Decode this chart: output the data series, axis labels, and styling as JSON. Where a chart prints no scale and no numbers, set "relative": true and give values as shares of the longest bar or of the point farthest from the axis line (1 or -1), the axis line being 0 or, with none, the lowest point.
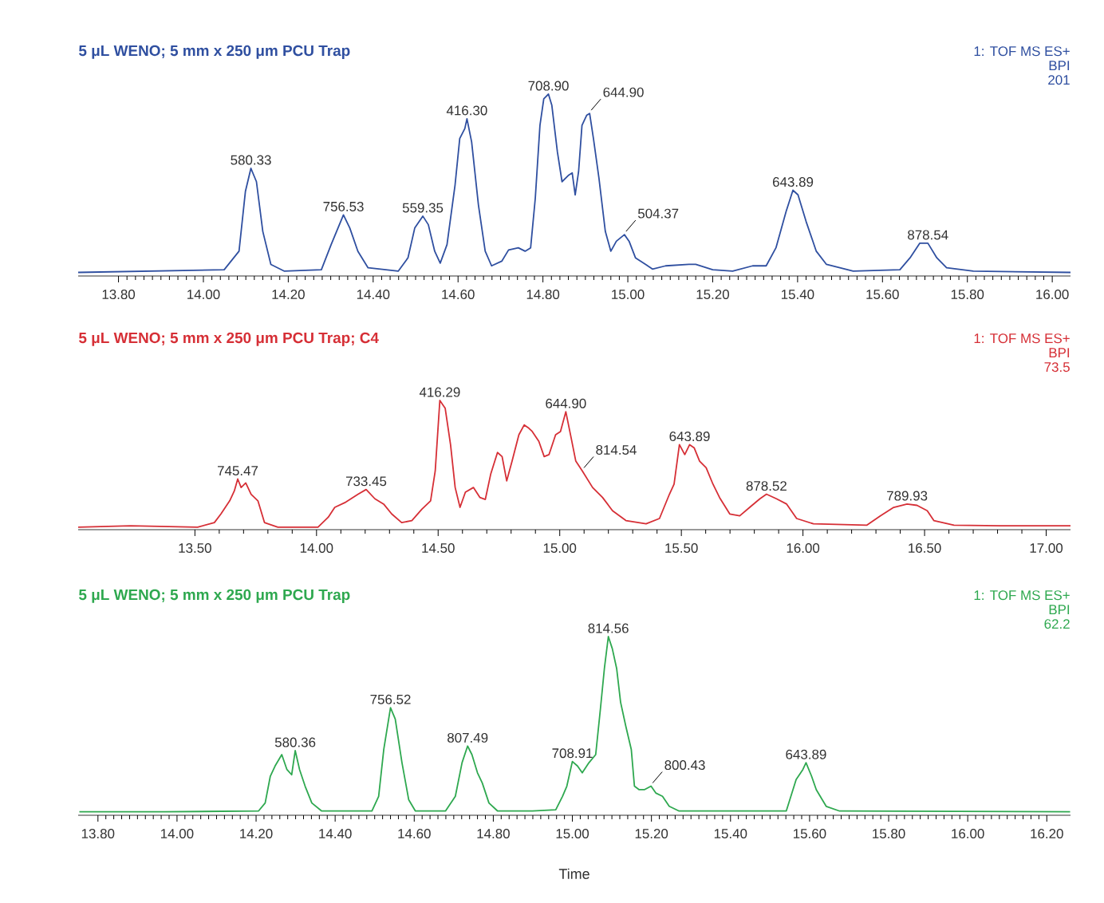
{
  "chart_data": [
    {
      "type": "line",
      "title": "5 μL WENO; 5 mm x 250 μm PCU Trap",
      "relative": true,
      "annotations": [
        "1: TOF MS ES+",
        "BPI",
        "201",
        {
          "text": "580.33",
          "x": 14.112,
          "y": 0.584
        },
        {
          "text": "756.53",
          "x": 14.33,
          "y": 0.323
        },
        {
          "text": "559.35",
          "x": 14.517,
          "y": 0.316
        },
        {
          "text": "416.30",
          "x": 14.621,
          "y": 0.862
        },
        {
          "text": "708.90",
          "x": 14.813,
          "y": 1
        },
        {
          "text": "644.90",
          "x": 14.91,
          "y": 0.892
        },
        {
          "text": "504.37",
          "x": 14.992,
          "y": 0.212
        },
        {
          "text": "643.89",
          "x": 15.389,
          "y": 0.461
        },
        {
          "text": "878.54",
          "x": 15.707,
          "y": 0.164
        }
      ],
      "xlim": [
        13.705,
        16.043
      ],
      "xticks": [
        {
          "value": 13.8,
          "label": "13.80"
        },
        {
          "value": 14.0,
          "label": "14.00"
        },
        {
          "value": 14.2,
          "label": "14.20"
        },
        {
          "value": 14.4,
          "label": "14.40"
        },
        {
          "value": 14.6,
          "label": "14.60"
        },
        {
          "value": 14.8,
          "label": "14.80"
        },
        {
          "value": 15.0,
          "label": "15.00"
        },
        {
          "value": 15.2,
          "label": "15.20"
        },
        {
          "value": 15.4,
          "label": "15.40"
        },
        {
          "value": 15.6,
          "label": "15.60"
        },
        {
          "value": 15.8,
          "label": "15.80"
        },
        {
          "value": 16.0,
          "label": "16.00"
        }
      ],
      "series": [
        {
          "color": "#2f4fa0",
          "x": [
            13.705,
            14.049,
            14.084,
            14.099,
            14.112,
            14.125,
            14.14,
            14.159,
            14.191,
            14.278,
            14.301,
            14.33,
            14.345,
            14.364,
            14.388,
            14.459,
            14.482,
            14.498,
            14.517,
            14.53,
            14.545,
            14.558,
            14.574,
            14.593,
            14.604,
            14.616,
            14.621,
            14.632,
            14.648,
            14.664,
            14.679,
            14.703,
            14.719,
            14.742,
            14.758,
            14.771,
            14.782,
            14.793,
            14.802,
            14.813,
            14.821,
            14.834,
            14.845,
            14.861,
            14.869,
            14.876,
            14.884,
            14.892,
            14.903,
            14.91,
            14.919,
            14.932,
            14.947,
            14.96,
            14.973,
            14.992,
            15.003,
            15.018,
            15.042,
            15.058,
            15.089,
            15.144,
            15.16,
            15.2,
            15.247,
            15.294,
            15.326,
            15.349,
            15.373,
            15.389,
            15.401,
            15.42,
            15.444,
            15.468,
            15.531,
            15.641,
            15.665,
            15.688,
            15.707,
            15.728,
            15.751,
            15.814,
            16.043
          ],
          "values": [
            0,
            0.015,
            0.119,
            0.454,
            0.584,
            0.509,
            0.23,
            0.045,
            0.007,
            0.015,
            0.156,
            0.323,
            0.249,
            0.119,
            0.026,
            0.007,
            0.082,
            0.249,
            0.316,
            0.268,
            0.119,
            0.052,
            0.156,
            0.491,
            0.751,
            0.807,
            0.862,
            0.732,
            0.379,
            0.119,
            0.037,
            0.063,
            0.126,
            0.138,
            0.119,
            0.138,
            0.416,
            0.825,
            0.974,
            1,
            0.937,
            0.677,
            0.509,
            0.546,
            0.558,
            0.435,
            0.565,
            0.825,
            0.881,
            0.892,
            0.751,
            0.528,
            0.23,
            0.119,
            0.175,
            0.212,
            0.175,
            0.082,
            0.045,
            0.019,
            0.037,
            0.045,
            0.045,
            0.015,
            0.007,
            0.037,
            0.037,
            0.138,
            0.342,
            0.461,
            0.435,
            0.286,
            0.119,
            0.045,
            0.007,
            0.015,
            0.082,
            0.164,
            0.164,
            0.082,
            0.026,
            0.007,
            0
          ]
        }
      ]
    },
    {
      "type": "line",
      "title": "5 μL WENO; 5 mm x 250 μm PCU Trap; C4",
      "relative": true,
      "annotations": [
        "1: TOF MS ES+",
        "BPI",
        "73.5",
        {
          "text": "745.47",
          "x": 13.676,
          "y": 0.38
        },
        {
          "text": "733.45",
          "x": 14.204,
          "y": 0.297
        },
        {
          "text": "416.29",
          "x": 14.507,
          "y": 1
        },
        {
          "text": "644.90",
          "x": 15.025,
          "y": 0.911
        },
        {
          "text": "814.54",
          "x": 15.093,
          "y": 0.443
        },
        {
          "text": "643.89",
          "x": 15.534,
          "y": 0.651
        },
        {
          "text": "878.52",
          "x": 15.85,
          "y": 0.26
        },
        {
          "text": "789.93",
          "x": 16.428,
          "y": 0.182
        }
      ],
      "xlim": [
        13.02,
        17.1
      ],
      "xticks": [
        {
          "value": 13.5,
          "label": "13.50"
        },
        {
          "value": 14.0,
          "label": "14.00"
        },
        {
          "value": 14.5,
          "label": "14.50"
        },
        {
          "value": 15.0,
          "label": "15.00"
        },
        {
          "value": 15.5,
          "label": "15.50"
        },
        {
          "value": 16.0,
          "label": "16.00"
        },
        {
          "value": 16.5,
          "label": "16.50"
        },
        {
          "value": 17.0,
          "label": "17.00"
        }
      ],
      "series": [
        {
          "color": "#d62f36",
          "x": [
            13.02,
            13.236,
            13.511,
            13.58,
            13.607,
            13.643,
            13.662,
            13.676,
            13.69,
            13.709,
            13.731,
            13.759,
            13.786,
            13.841,
            14.006,
            14.048,
            14.075,
            14.116,
            14.171,
            14.204,
            14.24,
            14.276,
            14.309,
            14.35,
            14.392,
            14.433,
            14.469,
            14.488,
            14.507,
            14.529,
            14.551,
            14.57,
            14.59,
            14.612,
            14.645,
            14.672,
            14.694,
            14.716,
            14.744,
            14.763,
            14.782,
            14.804,
            14.832,
            14.854,
            14.873,
            14.887,
            14.914,
            14.936,
            14.956,
            14.983,
            15.003,
            15.025,
            15.047,
            15.066,
            15.093,
            15.135,
            15.176,
            15.217,
            15.272,
            15.355,
            15.41,
            15.451,
            15.47,
            15.492,
            15.514,
            15.534,
            15.553,
            15.575,
            15.602,
            15.63,
            15.657,
            15.699,
            15.74,
            15.781,
            15.823,
            15.85,
            15.891,
            15.933,
            15.974,
            16.043,
            16.263,
            16.318,
            16.373,
            16.428,
            16.469,
            16.511,
            16.538,
            16.621,
            16.813,
            17.1
          ],
          "values": [
            0,
            0.01,
            0,
            0.036,
            0.104,
            0.208,
            0.286,
            0.38,
            0.313,
            0.349,
            0.26,
            0.208,
            0.036,
            0,
            0,
            0.078,
            0.156,
            0.193,
            0.26,
            0.297,
            0.224,
            0.182,
            0.104,
            0.036,
            0.052,
            0.141,
            0.208,
            0.443,
            1,
            0.938,
            0.651,
            0.313,
            0.156,
            0.276,
            0.313,
            0.234,
            0.219,
            0.417,
            0.589,
            0.557,
            0.365,
            0.521,
            0.729,
            0.807,
            0.781,
            0.755,
            0.677,
            0.557,
            0.573,
            0.729,
            0.755,
            0.911,
            0.703,
            0.521,
            0.443,
            0.313,
            0.234,
            0.13,
            0.052,
            0.026,
            0.068,
            0.26,
            0.339,
            0.651,
            0.573,
            0.651,
            0.625,
            0.521,
            0.469,
            0.339,
            0.234,
            0.104,
            0.089,
            0.156,
            0.224,
            0.26,
            0.224,
            0.182,
            0.068,
            0.026,
            0.016,
            0.089,
            0.156,
            0.182,
            0.172,
            0.13,
            0.052,
            0.016,
            0.01,
            0.01
          ]
        }
      ]
    },
    {
      "type": "line",
      "title": "5 μL WENO; 5 mm x 250 μm PCU Trap",
      "xlabel": "Time",
      "relative": true,
      "annotations": [
        "1: TOF MS ES+",
        "BPI",
        "62.2",
        {
          "text": "580.36",
          "x": 14.299,
          "y": 0.349
        },
        {
          "text": "756.52",
          "x": 14.54,
          "y": 0.594
        },
        {
          "text": "807.49",
          "x": 14.735,
          "y": 0.375
        },
        {
          "text": "708.91",
          "x": 15.0,
          "y": 0.287
        },
        {
          "text": "814.56",
          "x": 15.091,
          "y": 1
        },
        {
          "text": "800.43",
          "x": 15.199,
          "y": 0.146
        },
        {
          "text": "643.89",
          "x": 15.591,
          "y": 0.28
        }
      ],
      "xlim": [
        13.75,
        16.26
      ],
      "xticks": [
        {
          "value": 13.8,
          "label": "13.80"
        },
        {
          "value": 14.0,
          "label": "14.00"
        },
        {
          "value": 14.2,
          "label": "14.20"
        },
        {
          "value": 14.4,
          "label": "14.40"
        },
        {
          "value": 14.6,
          "label": "14.60"
        },
        {
          "value": 14.8,
          "label": "14.80"
        },
        {
          "value": 15.0,
          "label": "15.00"
        },
        {
          "value": 15.2,
          "label": "15.20"
        },
        {
          "value": 15.4,
          "label": "15.40"
        },
        {
          "value": 15.6,
          "label": "15.60"
        },
        {
          "value": 15.8,
          "label": "15.80"
        },
        {
          "value": 16.0,
          "label": "16.00"
        },
        {
          "value": 16.2,
          "label": "16.20"
        }
      ],
      "series": [
        {
          "color": "#2ea84f",
          "x": [
            13.753,
            13.969,
            14.206,
            14.223,
            14.236,
            14.248,
            14.265,
            14.278,
            14.29,
            14.299,
            14.31,
            14.324,
            14.341,
            14.366,
            14.493,
            14.51,
            14.523,
            14.54,
            14.552,
            14.569,
            14.586,
            14.603,
            14.679,
            14.704,
            14.721,
            14.735,
            14.746,
            14.76,
            14.772,
            14.789,
            14.811,
            14.899,
            14.958,
            14.975,
            14.986,
            15.0,
            15.013,
            15.025,
            15.042,
            15.059,
            15.071,
            15.081,
            15.091,
            15.101,
            15.112,
            15.122,
            15.135,
            15.149,
            15.157,
            15.169,
            15.182,
            15.199,
            15.211,
            15.228,
            15.245,
            15.27,
            15.541,
            15.566,
            15.583,
            15.591,
            15.605,
            15.617,
            15.642,
            15.676,
            16.259
          ],
          "values": [
            0,
            0,
            0.004,
            0.05,
            0.203,
            0.261,
            0.326,
            0.241,
            0.211,
            0.349,
            0.241,
            0.146,
            0.05,
            0.004,
            0.004,
            0.088,
            0.356,
            0.594,
            0.529,
            0.28,
            0.069,
            0.004,
            0.004,
            0.088,
            0.28,
            0.375,
            0.326,
            0.222,
            0.165,
            0.05,
            0.004,
            0.004,
            0.011,
            0.088,
            0.146,
            0.287,
            0.261,
            0.222,
            0.28,
            0.326,
            0.588,
            0.818,
            1,
            0.931,
            0.818,
            0.625,
            0.49,
            0.356,
            0.146,
            0.126,
            0.126,
            0.146,
            0.107,
            0.088,
            0.031,
            0.004,
            0.004,
            0.184,
            0.241,
            0.28,
            0.203,
            0.126,
            0.031,
            0.004,
            0
          ]
        }
      ]
    }
  ]
}
